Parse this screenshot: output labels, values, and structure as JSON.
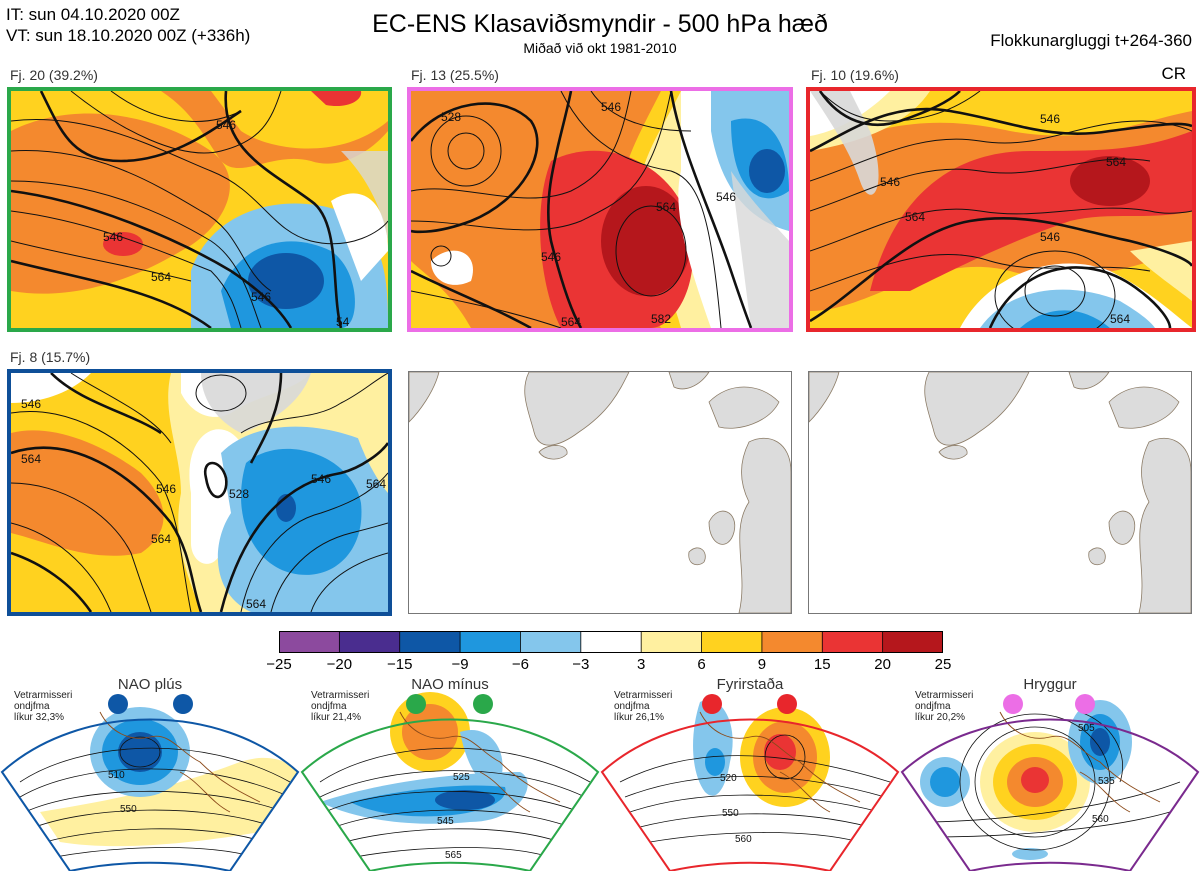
{
  "header": {
    "it_line": "IT: sun 04.10.2020 00Z",
    "vt_line": "VT: sun 18.10.2020 00Z  (+336h)",
    "title": "EC-ENS Klasaviðsmyndir - 500 hPa hæð",
    "subtitle": "Miðað við okt 1981-2010",
    "window": "Flokkunargluggi t+264-360",
    "cr": "CR"
  },
  "panels": [
    {
      "label": "Fj. 20 (39.2%)",
      "border_color": "#2aa84a",
      "contours": [
        "546",
        "546",
        "564",
        "546",
        "54"
      ]
    },
    {
      "label": "Fj. 13 (25.5%)",
      "border_color": "#ec6ee6",
      "contours": [
        "528",
        "546",
        "564",
        "546",
        "546",
        "564",
        "582"
      ]
    },
    {
      "label": "Fj. 10 (19.6%)",
      "border_color": "#e8262c",
      "contours": [
        "546",
        "546",
        "564",
        "564",
        "546",
        "564"
      ]
    },
    {
      "label": "Fj. 8 (15.7%)",
      "border_color": "#0e4f98",
      "contours": [
        "546",
        "564",
        "546",
        "564",
        "528",
        "546",
        "564",
        "564"
      ]
    }
  ],
  "colorbar": {
    "colors": [
      "#8c4a9e",
      "#4a2d8f",
      "#0e57a6",
      "#1f97de",
      "#84c6ec",
      "#ffffff",
      "#fff0a0",
      "#ffd21f",
      "#f4892e",
      "#ea3434",
      "#b5171c"
    ],
    "labels": [
      "−25",
      "−20",
      "−15",
      "−9",
      "−6",
      "−3",
      "3",
      "6",
      "9",
      "15",
      "20",
      "25"
    ]
  },
  "regimes": [
    {
      "title": "NAO plús",
      "note_lines": [
        "Vetrarmisseri",
        "ondjfma",
        "líkur 32,3%"
      ],
      "color": "#0e57a6",
      "border": "#0e57a6",
      "contours": [
        "510",
        "550"
      ]
    },
    {
      "title": "NAO mínus",
      "note_lines": [
        "Vetrarmisseri",
        "ondjfma",
        "líkur 21,4%"
      ],
      "color": "#2aa84a",
      "border": "#2aa84a",
      "contours": [
        "525",
        "545",
        "565"
      ]
    },
    {
      "title": "Fyrirstaða",
      "note_lines": [
        "Vetrarmisseri",
        "ondjfma",
        "líkur 26,1%"
      ],
      "color": "#e8262c",
      "border": "#e8262c",
      "contours": [
        "520",
        "550",
        "560"
      ]
    },
    {
      "title": "Hryggur",
      "note_lines": [
        "Vetrarmisseri",
        "ondjfma",
        "líkur 20,2%"
      ],
      "color": "#ec6ee6",
      "border": "#7a2a8e",
      "contours": [
        "505",
        "535",
        "560"
      ]
    }
  ]
}
